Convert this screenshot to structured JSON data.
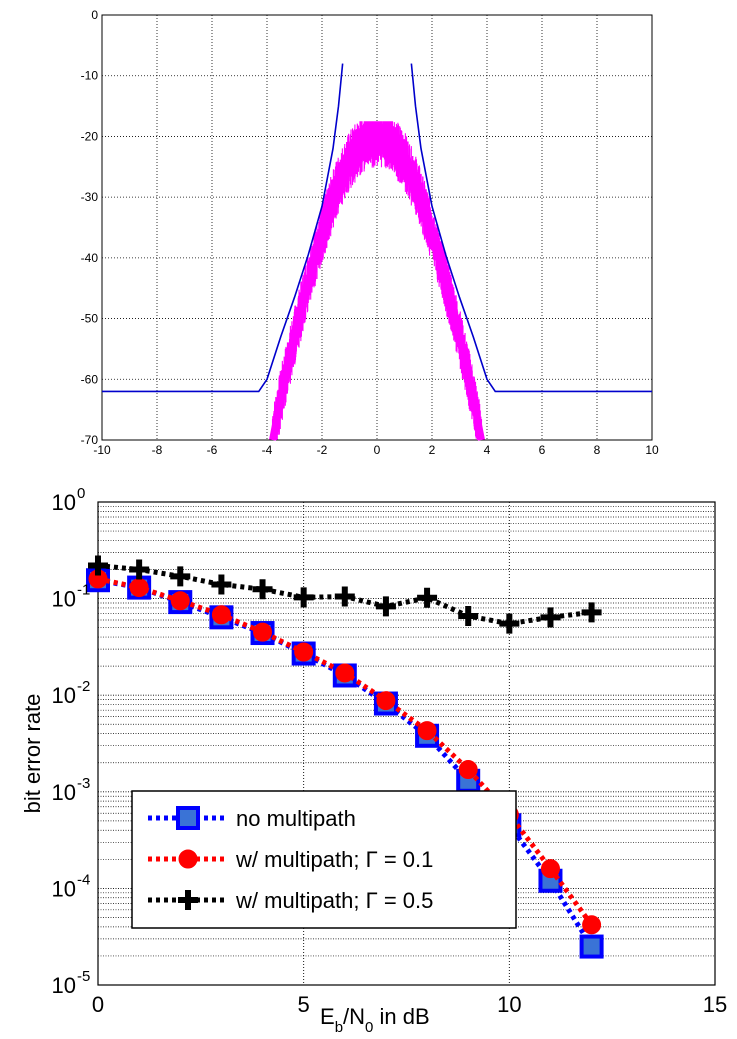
{
  "chart_data": [
    {
      "type": "line",
      "title": "",
      "xlabel": "",
      "ylabel": "",
      "xlim": [
        -10,
        10
      ],
      "ylim": [
        -70,
        0
      ],
      "x_ticks": [
        -10,
        -8,
        -6,
        -4,
        -2,
        0,
        2,
        4,
        6,
        8,
        10
      ],
      "y_ticks": [
        0,
        -10,
        -20,
        -30,
        -40,
        -50,
        -60,
        -70
      ],
      "x_tick_labels": [
        "-10",
        "-8",
        "-6",
        "-4",
        "-2",
        "0",
        "2",
        "4",
        "6",
        "8",
        "10"
      ],
      "y_tick_labels": [
        "0",
        "-10",
        "-20",
        "-30",
        "-40",
        "-50",
        "-60",
        "-70"
      ],
      "grid": true,
      "legend": "none",
      "series": [
        {
          "color": "#0000cc",
          "segments": [
            [
              [
                -10,
                -62
              ],
              [
                -4.3,
                -62
              ],
              [
                -4.0,
                -60
              ],
              [
                -3.5,
                -53
              ],
              [
                -3.0,
                -46.5
              ],
              [
                -2.5,
                -39.5
              ],
              [
                -2.0,
                -31.5
              ],
              [
                -1.6,
                -22
              ],
              [
                -1.4,
                -15
              ],
              [
                -1.25,
                -8
              ]
            ],
            [
              [
                1.25,
                -8
              ],
              [
                1.4,
                -15
              ],
              [
                1.6,
                -22
              ],
              [
                2.0,
                -31.5
              ],
              [
                2.5,
                -39.5
              ],
              [
                3.0,
                -46.5
              ],
              [
                3.5,
                -53
              ],
              [
                4.0,
                -60
              ],
              [
                4.3,
                -62
              ],
              [
                10,
                -62
              ]
            ]
          ]
        },
        {
          "color": "#ff00ff",
          "style": "noisy-band",
          "center": [
            [
              -3.8,
              -70
            ],
            [
              -3.5,
              -63
            ],
            [
              -3.0,
              -53
            ],
            [
              -2.5,
              -44
            ],
            [
              -2.0,
              -36
            ],
            [
              -1.5,
              -29
            ],
            [
              -1.0,
              -24
            ],
            [
              -0.5,
              -21
            ],
            [
              0.0,
              -20
            ],
            [
              0.5,
              -21
            ],
            [
              1.0,
              -24
            ],
            [
              1.5,
              -29
            ],
            [
              2.0,
              -36
            ],
            [
              2.5,
              -44
            ],
            [
              3.0,
              -53
            ],
            [
              3.5,
              -63
            ],
            [
              3.8,
              -70
            ]
          ],
          "band_halfwidth_db": 3.5
        }
      ]
    },
    {
      "type": "line",
      "title": "",
      "xlabel_main": "E",
      "xlabel_sub1": "b",
      "xlabel_mid": "/N",
      "xlabel_sub2": "0",
      "xlabel_tail": " in dB",
      "ylabel": "bit error rate",
      "xlim": [
        0,
        15
      ],
      "ylim": [
        1e-05,
        1
      ],
      "y_scale": "log",
      "x_ticks": [
        0,
        5,
        10,
        15
      ],
      "x_tick_labels": [
        "0",
        "5",
        "10",
        "15"
      ],
      "y_tick_base": "10",
      "y_tick_exponents": [
        "0",
        "-1",
        "-2",
        "-3",
        "-4",
        "-5"
      ],
      "grid": true,
      "legend": "bottom-left",
      "series": [
        {
          "name": "no multipath",
          "color": "#0000ff",
          "marker": "square",
          "x": [
            0,
            1,
            2,
            3,
            4,
            5,
            6,
            7,
            8,
            9,
            10,
            11,
            12
          ],
          "y": [
            0.155,
            0.13,
            0.092,
            0.064,
            0.044,
            0.027,
            0.016,
            0.0082,
            0.0038,
            0.0013,
            0.00045,
            0.00012,
            2.5e-05
          ]
        },
        {
          "name": "w/ multipath; Γ = 0.1",
          "color": "#ff0000",
          "marker": "circle",
          "x": [
            0,
            1,
            2,
            3,
            4,
            5,
            6,
            7,
            8,
            9,
            10,
            11,
            12
          ],
          "y": [
            0.16,
            0.13,
            0.095,
            0.068,
            0.045,
            0.028,
            0.017,
            0.0088,
            0.0043,
            0.0017,
            0.00058,
            0.00016,
            4.2e-05
          ]
        },
        {
          "name": "w/ multipath; Γ = 0.5",
          "color": "#000000",
          "marker": "plus",
          "x": [
            0,
            1,
            2,
            3,
            4,
            5,
            6,
            7,
            8,
            9,
            10,
            11,
            12
          ],
          "y": [
            0.22,
            0.2,
            0.17,
            0.14,
            0.125,
            0.103,
            0.105,
            0.083,
            0.102,
            0.066,
            0.055,
            0.064,
            0.072
          ]
        }
      ]
    }
  ]
}
